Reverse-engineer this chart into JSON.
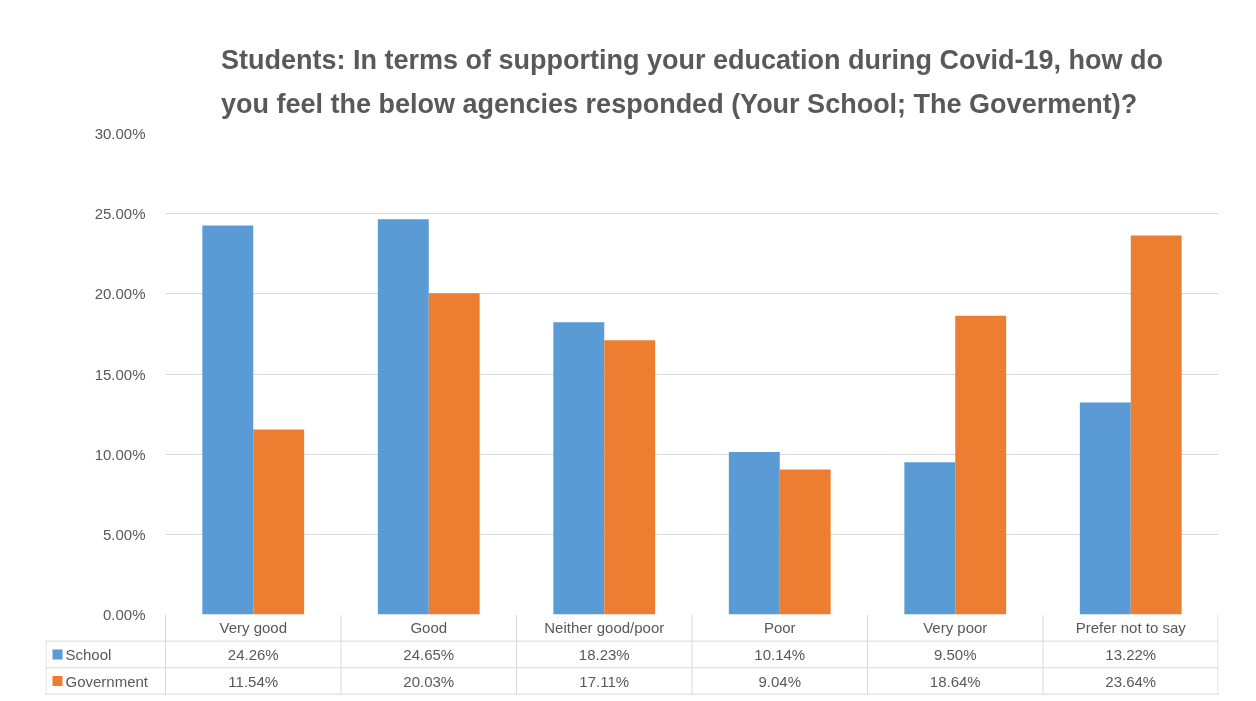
{
  "chart_data": {
    "type": "bar",
    "title": "Students: In terms of supporting your education during Covid-19, how do you feel the below agencies responded (Your School; The Goverment)?",
    "categories": [
      "Very good",
      "Good",
      "Neither good/poor",
      "Poor",
      "Very poor",
      "Prefer not to say"
    ],
    "series": [
      {
        "name": "School",
        "color": "#5b9bd5",
        "values": [
          24.26,
          24.65,
          18.23,
          10.14,
          9.5,
          13.22
        ],
        "value_labels": [
          "24.26%",
          "24.65%",
          "18.23%",
          "10.14%",
          "9.50%",
          "13.22%"
        ]
      },
      {
        "name": "Government",
        "color": "#ed7d31",
        "values": [
          11.54,
          20.03,
          17.11,
          9.04,
          18.64,
          23.64
        ],
        "value_labels": [
          "11.54%",
          "20.03%",
          "17.11%",
          "9.04%",
          "18.64%",
          "23.64%"
        ]
      }
    ],
    "ylim": [
      0,
      30
    ],
    "yticks": [
      {
        "value": 0,
        "label": "0.00%"
      },
      {
        "value": 5,
        "label": "5.00%"
      },
      {
        "value": 10,
        "label": "10.00%"
      },
      {
        "value": 15,
        "label": "15.00%"
      },
      {
        "value": 20,
        "label": "20.00%"
      },
      {
        "value": 25,
        "label": "25.00%"
      },
      {
        "value": 30,
        "label": "30.00%"
      }
    ],
    "grid": "y",
    "legend": "bottom"
  }
}
